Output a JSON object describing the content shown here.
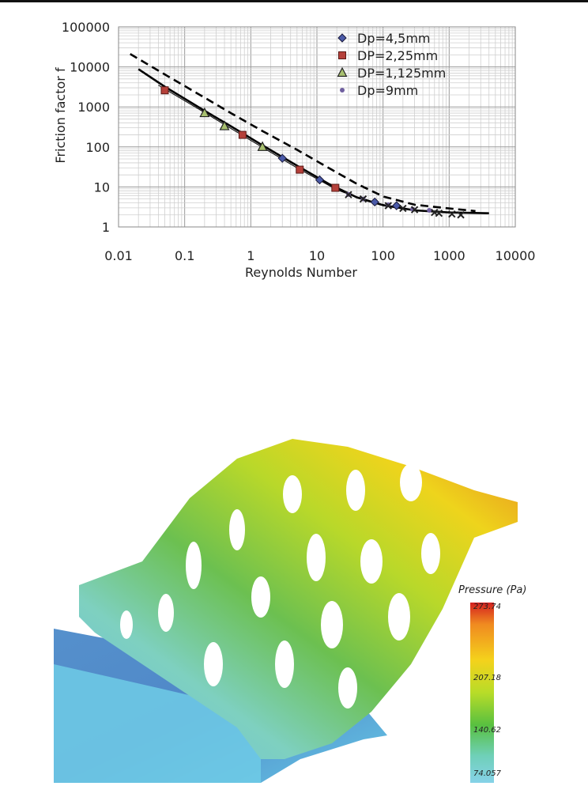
{
  "chart_data": {
    "type": "scatter",
    "xlabel": "Reynolds Number",
    "ylabel": "Friction factor f",
    "xscale": "log",
    "yscale": "log",
    "xlim": [
      0.01,
      10000
    ],
    "ylim": [
      1,
      100000
    ],
    "xticks": [
      "0.01",
      "0.1",
      "1",
      "10",
      "100",
      "1000",
      "10000"
    ],
    "yticks": [
      "1",
      "10",
      "100",
      "1000",
      "10000",
      "100000"
    ],
    "grid": true,
    "legend_position": "top-right",
    "series": [
      {
        "name": "Dp=4,5mm",
        "marker": "diamond",
        "color": "#4a5aa8",
        "points": [
          [
            3,
            52
          ],
          [
            11,
            15
          ],
          [
            75,
            4.2
          ],
          [
            160,
            3.4
          ]
        ]
      },
      {
        "name": "DP=2,25mm",
        "marker": "square",
        "color": "#b5403a",
        "points": [
          [
            0.05,
            2600
          ],
          [
            0.75,
            200
          ],
          [
            5.5,
            27
          ],
          [
            19,
            9.5
          ]
        ]
      },
      {
        "name": "DP=1,125mm",
        "marker": "triangle",
        "color": "#a8c070",
        "points": [
          [
            0.2,
            700
          ],
          [
            0.4,
            330
          ],
          [
            1.5,
            100
          ]
        ]
      },
      {
        "name": "Dp=9mm",
        "marker": "circle",
        "color": "#7060a0",
        "points": [
          [
            30,
            6.5
          ],
          [
            50,
            5
          ],
          [
            120,
            3.6
          ],
          [
            280,
            2.8
          ],
          [
            500,
            2.6
          ]
        ]
      },
      {
        "marker": "x",
        "color": "#222222",
        "points": [
          [
            30,
            6.4
          ],
          [
            50,
            5
          ],
          [
            120,
            3.4
          ],
          [
            200,
            2.9
          ],
          [
            300,
            2.7
          ],
          [
            600,
            2.3
          ],
          [
            700,
            2.2
          ],
          [
            1100,
            2.1
          ],
          [
            1500,
            2.0
          ]
        ]
      }
    ],
    "lines": [
      {
        "style": "dashed",
        "color": "#000000",
        "points": [
          [
            0.015,
            21000
          ],
          [
            0.05,
            6500
          ],
          [
            0.2,
            1700
          ],
          [
            0.5,
            700
          ],
          [
            1.5,
            250
          ],
          [
            5,
            85
          ],
          [
            15,
            30
          ],
          [
            40,
            12
          ],
          [
            100,
            5.8
          ],
          [
            300,
            3.6
          ],
          [
            1000,
            2.9
          ],
          [
            2500,
            2.5
          ]
        ]
      },
      {
        "style": "solid",
        "color": "#000000",
        "points": [
          [
            0.02,
            8800
          ],
          [
            0.05,
            3200
          ],
          [
            0.2,
            800
          ],
          [
            0.5,
            330
          ],
          [
            1.5,
            110
          ],
          [
            5,
            34
          ],
          [
            15,
            12
          ],
          [
            40,
            5.5
          ],
          [
            100,
            3.5
          ],
          [
            300,
            2.6
          ],
          [
            1000,
            2.3
          ],
          [
            4000,
            2.2
          ]
        ]
      },
      {
        "style": "solid-thin",
        "color": "#000000",
        "points": [
          [
            0.04,
            3500
          ],
          [
            0.2,
            720
          ],
          [
            1,
            145
          ],
          [
            5,
            30
          ],
          [
            20,
            8.5
          ],
          [
            60,
            4.3
          ],
          [
            150,
            3.2
          ]
        ]
      }
    ]
  },
  "figure": {
    "colorbar": {
      "title": "Pressure (Pa)",
      "labels": [
        "273.74",
        "207.18",
        "140.62",
        "74.057"
      ],
      "colors": [
        "#d42020",
        "#f08a20",
        "#f4d21c",
        "#b8dc28",
        "#58c040",
        "#6fd0b8",
        "#86d2e8"
      ]
    }
  }
}
